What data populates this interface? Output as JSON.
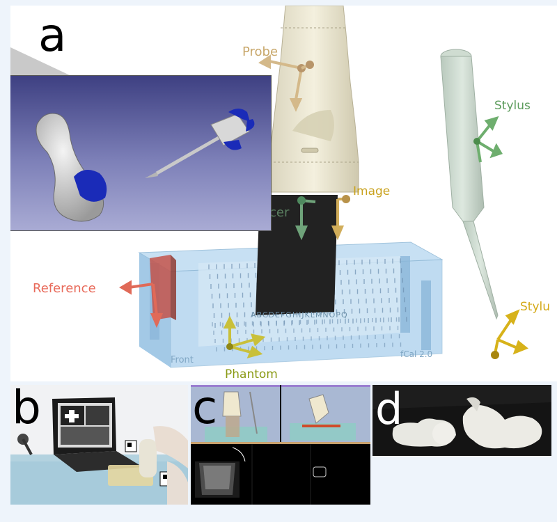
{
  "panels": {
    "a": {
      "letter": "a",
      "labels": {
        "probe": "Probe",
        "stylus_top": "Stylus",
        "image": "Image",
        "transducer_partial": "cer",
        "reference": "Reference",
        "stylus_bottom": "Stylu",
        "phantom": "Phantom",
        "phantom_front": "Front",
        "phantom_model": "fCal 2.0",
        "phantom_letters": "ABCDEFGHIJKLMNOPQ"
      }
    },
    "b": {
      "letter": "b"
    },
    "c": {
      "letter": "c"
    },
    "d": {
      "letter": "d"
    }
  },
  "colors": {
    "probe_label": "#c8a76a",
    "stylus_label": "#5c9c5c",
    "image_label": "#c9a21e",
    "reference_label": "#e86a5a",
    "phantom_label": "#8a9a14",
    "inset_bg_top": "#3d4080",
    "inset_bg_bottom": "#a8aad2",
    "marker_blue": "#1a2bb8"
  }
}
